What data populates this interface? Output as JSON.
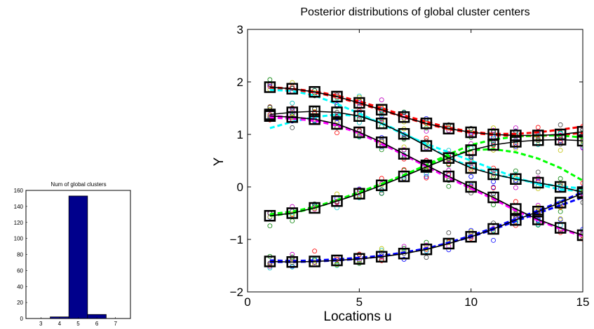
{
  "chart_data": [
    {
      "type": "bar",
      "title": "Num of global clusters",
      "xlabel": "",
      "ylabel": "",
      "categories": [
        3,
        4,
        5,
        6,
        7
      ],
      "values": [
        0,
        2,
        153,
        5,
        0
      ],
      "xlim": [
        2.2,
        7.8
      ],
      "ylim": [
        0,
        160
      ],
      "xticks": [
        "3",
        "4",
        "5",
        "6",
        "7"
      ],
      "yticks": [
        "0",
        "20",
        "40",
        "60",
        "80",
        "100",
        "120",
        "140",
        "160"
      ],
      "ytick_values": [
        0,
        20,
        40,
        60,
        80,
        100,
        120,
        140,
        160
      ],
      "bar_color": "#00008c",
      "grid": false
    },
    {
      "type": "line",
      "title": "Posterior distributions of global cluster centers",
      "xlabel": "Locations u",
      "ylabel": "Y",
      "xlim": [
        0,
        15
      ],
      "ylim": [
        -2,
        3
      ],
      "xticks": [
        "0",
        "5",
        "10",
        "15"
      ],
      "xtick_values": [
        0,
        5,
        10,
        15
      ],
      "yticks": [
        "−2",
        "−1",
        "0",
        "1",
        "2",
        "3"
      ],
      "ytick_values": [
        -2,
        -1,
        0,
        1,
        2,
        3
      ],
      "grid": false,
      "x": [
        1,
        2,
        3,
        4,
        5,
        6,
        7,
        8,
        9,
        10,
        11,
        12,
        13,
        14,
        15
      ],
      "true_centers": [
        [
          1.9,
          1.87,
          1.81,
          1.72,
          1.6,
          1.47,
          1.33,
          1.21,
          1.11,
          1.04,
          1.0,
          0.98,
          0.98,
          1.0,
          1.05
        ],
        [
          1.38,
          1.42,
          1.44,
          1.42,
          1.35,
          1.21,
          1.01,
          0.78,
          0.55,
          0.36,
          0.24,
          0.15,
          0.08,
          0.0,
          -0.1
        ],
        [
          1.35,
          1.33,
          1.29,
          1.2,
          1.04,
          0.85,
          0.63,
          0.41,
          0.2,
          0.0,
          -0.2,
          -0.42,
          -0.62,
          -0.78,
          -0.92
        ],
        [
          -0.55,
          -0.5,
          -0.4,
          -0.27,
          -0.13,
          0.03,
          0.2,
          0.38,
          0.55,
          0.7,
          0.8,
          0.86,
          0.89,
          0.9,
          0.88
        ],
        [
          -1.42,
          -1.43,
          -1.42,
          -1.4,
          -1.37,
          -1.33,
          -1.27,
          -1.19,
          -1.08,
          -0.95,
          -0.8,
          -0.63,
          -0.47,
          -0.3,
          -0.12
        ]
      ],
      "series": [
        {
          "color": "#ff0000",
          "style": "dashed",
          "values": [
            1.9,
            1.87,
            1.82,
            1.74,
            1.63,
            1.5,
            1.36,
            1.24,
            1.13,
            1.05,
            1.01,
            1.01,
            1.04,
            1.09,
            1.15
          ]
        },
        {
          "color": "#ff0000",
          "style": "dashed",
          "values": [
            1.88,
            1.85,
            1.8,
            1.71,
            1.59,
            1.46,
            1.33,
            1.2,
            1.1,
            1.03,
            0.99,
            0.97,
            0.97,
            0.99,
            1.03
          ]
        },
        {
          "color": "#00ffff",
          "style": "dashed",
          "values": [
            1.12,
            1.24,
            1.33,
            1.38,
            1.35,
            1.22,
            1.02,
            0.79,
            0.56,
            0.38,
            0.25,
            0.15,
            0.07,
            0.01,
            -0.03
          ]
        },
        {
          "color": "#00ffff",
          "style": "dashed",
          "values": [
            1.85,
            1.83,
            1.74,
            1.58,
            1.4,
            1.2,
            1.0,
            0.82,
            0.66,
            0.5,
            0.34,
            0.18,
            0.05,
            -0.05,
            -0.08
          ]
        },
        {
          "color": "#00ff00",
          "style": "dashed",
          "values": [
            -0.52,
            -0.47,
            -0.38,
            -0.25,
            -0.1,
            0.06,
            0.23,
            0.41,
            0.58,
            0.7,
            0.72,
            0.66,
            0.54,
            0.36,
            0.12
          ]
        },
        {
          "color": "#00ff00",
          "style": "dashed",
          "values": [
            -0.55,
            -0.5,
            -0.4,
            -0.26,
            -0.12,
            0.04,
            0.22,
            0.42,
            0.62,
            0.8,
            0.9,
            0.96,
            0.98,
            0.98,
            0.94
          ]
        },
        {
          "color": "#ff00ff",
          "style": "dashed",
          "values": [
            1.32,
            1.3,
            1.26,
            1.17,
            1.02,
            0.82,
            0.61,
            0.39,
            0.17,
            -0.03,
            -0.23,
            -0.45,
            -0.64,
            -0.8,
            -0.94
          ]
        },
        {
          "color": "#ff00ff",
          "style": "dashed",
          "values": [
            1.35,
            1.33,
            1.28,
            1.19,
            1.03,
            0.84,
            0.62,
            0.4,
            0.19,
            -0.02,
            -0.22,
            -0.43,
            -0.63,
            -0.79,
            -0.92
          ]
        },
        {
          "color": "#0000ff",
          "style": "dashed",
          "values": [
            -1.43,
            -1.43,
            -1.42,
            -1.4,
            -1.37,
            -1.32,
            -1.26,
            -1.18,
            -1.06,
            -0.93,
            -0.78,
            -0.61,
            -0.45,
            -0.28,
            -0.1
          ]
        },
        {
          "color": "#0000ff",
          "style": "dashed",
          "values": [
            -1.4,
            -1.41,
            -1.4,
            -1.38,
            -1.35,
            -1.31,
            -1.25,
            -1.17,
            -1.07,
            -0.95,
            -0.81,
            -0.65,
            -0.5,
            -0.35,
            -0.2
          ]
        },
        {
          "color": "#000000",
          "style": "solid",
          "values": [
            1.9,
            1.87,
            1.81,
            1.72,
            1.6,
            1.47,
            1.33,
            1.21,
            1.11,
            1.04,
            1.0,
            0.98,
            0.98,
            1.0,
            1.05
          ]
        },
        {
          "color": "#000000",
          "style": "solid",
          "values": [
            1.38,
            1.42,
            1.44,
            1.42,
            1.35,
            1.21,
            1.01,
            0.78,
            0.55,
            0.36,
            0.24,
            0.15,
            0.08,
            0.0,
            -0.1
          ]
        },
        {
          "color": "#000000",
          "style": "solid",
          "values": [
            1.35,
            1.33,
            1.29,
            1.2,
            1.04,
            0.85,
            0.63,
            0.41,
            0.2,
            0.0,
            -0.2,
            -0.42,
            -0.62,
            -0.78,
            -0.92
          ]
        },
        {
          "color": "#000000",
          "style": "solid",
          "values": [
            -0.55,
            -0.5,
            -0.4,
            -0.27,
            -0.13,
            0.03,
            0.2,
            0.38,
            0.55,
            0.7,
            0.8,
            0.86,
            0.89,
            0.9,
            0.88
          ]
        },
        {
          "color": "#000000",
          "style": "solid",
          "values": [
            -1.42,
            -1.43,
            -1.42,
            -1.4,
            -1.37,
            -1.33,
            -1.27,
            -1.19,
            -1.08,
            -0.95,
            -0.8,
            -0.63,
            -0.47,
            -0.3,
            -0.12
          ]
        }
      ],
      "scatter_colors": [
        "#0000ff",
        "#008000",
        "#ff0000",
        "#00bfbf",
        "#bf00bf",
        "#bfbf00",
        "#404040"
      ],
      "scatter_spread": 0.12
    }
  ]
}
